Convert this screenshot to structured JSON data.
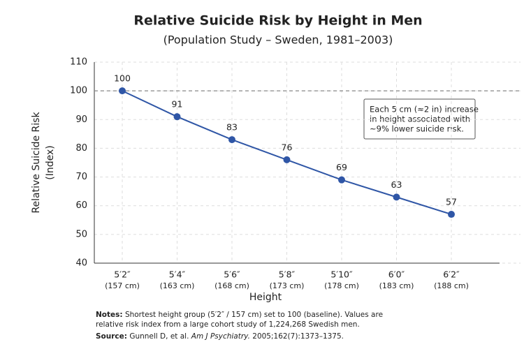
{
  "chart_data": {
    "type": "line",
    "title": "Relative Suicide Risk by Height in Men",
    "subtitle": "(Population Study – Sweden, 1981–2003)",
    "x_label": "Height",
    "y_label": [
      "Relative Suicide Risk",
      "(Index)"
    ],
    "categories": [
      "5′2″",
      "5′4″",
      "5′6″",
      "5′8″",
      "5′10″",
      "6′0″",
      "6′2″"
    ],
    "category_metric": [
      "(157 cm)",
      "(163 cm)",
      "(168 cm)",
      "(173 cm)",
      "(178 cm)",
      "(183 cm)",
      "(188 cm)"
    ],
    "values": [
      100,
      91,
      83,
      76,
      69,
      63,
      57
    ],
    "color": "#2f56a6",
    "ylim": [
      40,
      110
    ],
    "yticks": [
      40,
      50,
      60,
      70,
      80,
      90,
      100,
      110
    ],
    "grid": true,
    "reference_line": 100,
    "annotation": [
      "Each 5 cm (≈2 in) increase",
      "in height associated with",
      "~9% lower suicide risk."
    ],
    "notes": {
      "label": "Notes:",
      "lines": [
        "Shortest height group (5′2″ / 157 cm) set to 100 (baseline).  Values are",
        "relative risk index from a large cohort study of 1,224,268 Swedish men."
      ]
    },
    "source": {
      "label": "Source:",
      "before": "Gunnell D, et al. ",
      "journal": "Am J Psychiatry.",
      "after": " 2005;162(7):1373–1375."
    }
  }
}
